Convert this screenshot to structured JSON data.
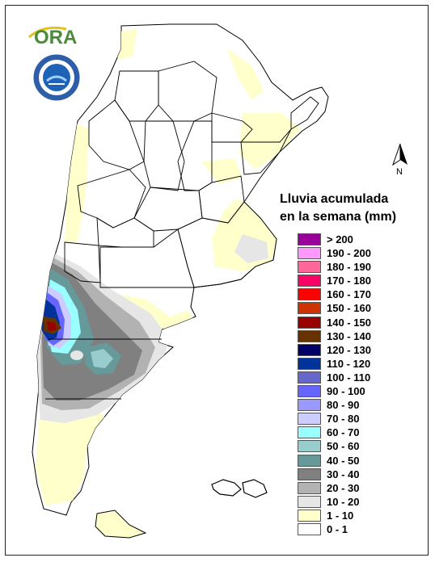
{
  "logos": {
    "ora_text": "ORA",
    "smn_icon": "smn-seal-icon",
    "ora_icon": "ora-logo-icon"
  },
  "map": {
    "north_label": "N",
    "north_icon": "north-arrow-icon"
  },
  "legend": {
    "title_line1": "Lluvia acumulada",
    "title_line2": "en la semana (mm)",
    "items": [
      {
        "label": "> 200",
        "color": "#990099"
      },
      {
        "label": "190 - 200",
        "color": "#ff99ff"
      },
      {
        "label": "180 - 190",
        "color": "#ff6699"
      },
      {
        "label": "170 - 180",
        "color": "#ff0066"
      },
      {
        "label": "160 - 170",
        "color": "#ff0000"
      },
      {
        "label": "150 - 160",
        "color": "#cc3300"
      },
      {
        "label": "140 - 150",
        "color": "#990000"
      },
      {
        "label": "130 - 140",
        "color": "#663300"
      },
      {
        "label": "120 - 130",
        "color": "#000066"
      },
      {
        "label": "110 - 120",
        "color": "#003399"
      },
      {
        "label": "100 - 110",
        "color": "#6666cc"
      },
      {
        "label": "90 - 100",
        "color": "#6666ff"
      },
      {
        "label": "80 - 90",
        "color": "#9999ff"
      },
      {
        "label": "70 - 80",
        "color": "#ccccff"
      },
      {
        "label": "60 - 70",
        "color": "#99ffff"
      },
      {
        "label": "50 - 60",
        "color": "#99cccc"
      },
      {
        "label": "40 - 50",
        "color": "#669999"
      },
      {
        "label": "30 - 40",
        "color": "#808080"
      },
      {
        "label": "20 - 30",
        "color": "#b2b2b2"
      },
      {
        "label": "10 - 20",
        "color": "#e6e6e6"
      },
      {
        "label": "1 - 10",
        "color": "#ffffcc"
      },
      {
        "label": "0 - 1",
        "color": "#ffffff"
      }
    ]
  }
}
